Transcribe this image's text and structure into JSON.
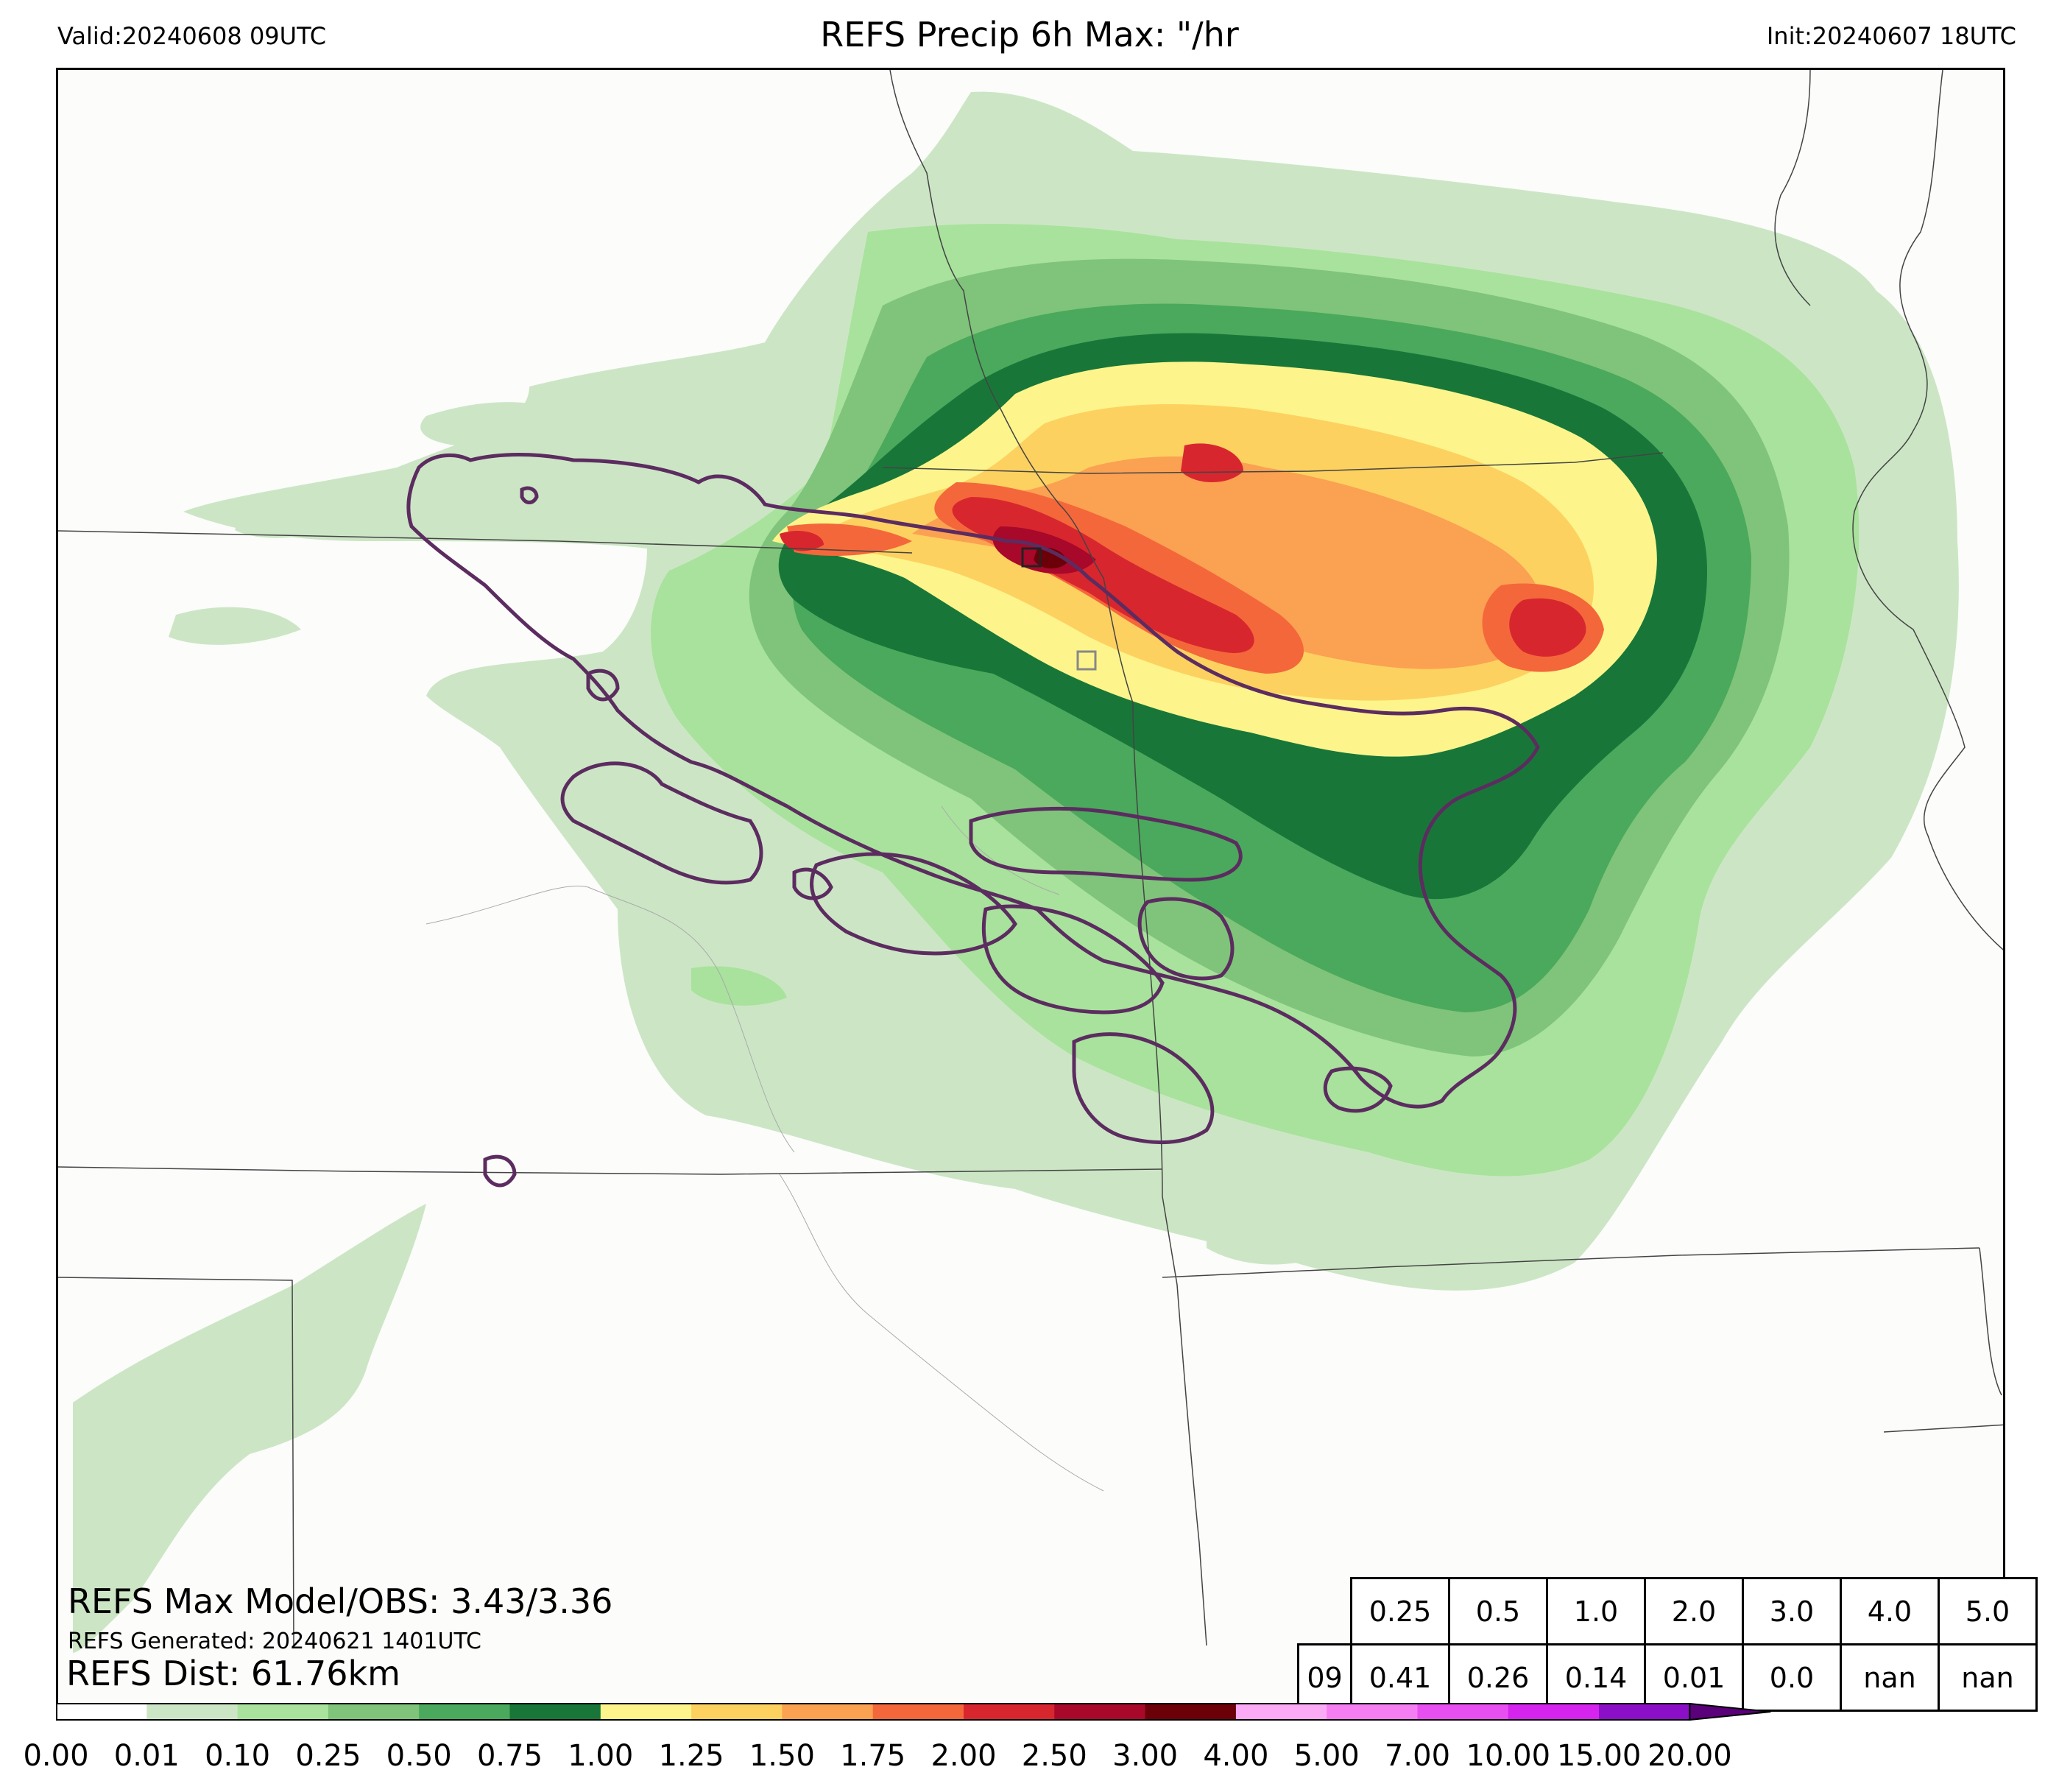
{
  "header": {
    "valid": "Valid:20240608 09UTC",
    "title": "REFS Precip 6h Max: \"/hr",
    "init": "Init:20240607 18UTC"
  },
  "annotations": {
    "max_model_obs": "REFS Max Model/OBS: 3.43/3.36",
    "generated": "REFS Generated: 20240621 1401UTC",
    "distance": "REFS Dist: 61.76km"
  },
  "stats_table": {
    "thresholds": [
      "0.25",
      "0.5",
      "1.0",
      "2.0",
      "3.0",
      "4.0",
      "5.0"
    ],
    "hour": "09",
    "values": [
      "0.41",
      "0.26",
      "0.14",
      "0.01",
      "0.0",
      "nan",
      "nan"
    ]
  },
  "colorbar": {
    "ticks": [
      "0.00",
      "0.01",
      "0.10",
      "0.25",
      "0.50",
      "0.75",
      "1.00",
      "1.25",
      "1.50",
      "1.75",
      "2.00",
      "2.50",
      "3.00",
      "4.00",
      "5.00",
      "7.00",
      "10.00",
      "15.00",
      "20.00"
    ],
    "colors": [
      "#ffffff",
      "#cce6c5",
      "#a8e29c",
      "#7fc47a",
      "#4aa95c",
      "#187738",
      "#fdf58c",
      "#fdd160",
      "#fba152",
      "#f4673a",
      "#d8262e",
      "#a8082a",
      "#6b0008",
      "#fbaaf5",
      "#f47ef2",
      "#e84ff0",
      "#d524ee",
      "#8b0fc6"
    ],
    "extend_color": "#5a007a"
  },
  "map_colors": {
    "background": "#fcfcfb",
    "obs_contour": "#5c2c60",
    "borders": "#444444"
  }
}
